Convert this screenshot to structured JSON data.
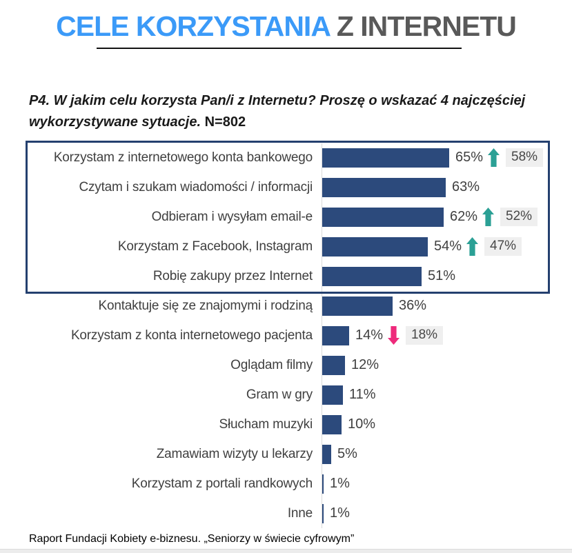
{
  "title": {
    "part1": "CELE KORZYSTANIA",
    "part2": "Z INTERNETU"
  },
  "question": {
    "text": "P4. W jakim celu korzysta Pan/i z Internetu? Proszę o wskazać 4 najczęściej wykorzystywane sytuacje.",
    "n_label": "N=802"
  },
  "chart_data": {
    "type": "bar",
    "orientation": "horizontal",
    "unit": "%",
    "xlim": [
      0,
      70
    ],
    "grid": false,
    "highlighted_top_n": 5,
    "categories": [
      "Korzystam z internetowego konta bankowego",
      "Czytam i szukam wiadomości / informacji",
      "Odbieram i wysyłam email-e",
      "Korzystam z Facebook, Instagram",
      "Robię zakupy przez Internet",
      "Kontaktuje się ze znajomymi i rodziną",
      "Korzystam z konta internetowego pacjenta",
      "Oglądam filmy",
      "Gram w gry",
      "Słucham muzyki",
      "Zamawiam wizyty u lekarzy",
      "Korzystam z portali randkowych",
      "Inne"
    ],
    "values": [
      65,
      63,
      62,
      54,
      51,
      36,
      14,
      12,
      11,
      10,
      5,
      1,
      1
    ],
    "rows": [
      {
        "label": "Korzystam z internetowego konta bankowego",
        "value": 65,
        "trend": "up",
        "previous": 58
      },
      {
        "label": "Czytam i szukam wiadomości / informacji",
        "value": 63,
        "trend": null,
        "previous": null
      },
      {
        "label": "Odbieram i wysyłam email-e",
        "value": 62,
        "trend": "up",
        "previous": 52
      },
      {
        "label": "Korzystam z Facebook, Instagram",
        "value": 54,
        "trend": "up",
        "previous": 47
      },
      {
        "label": "Robię zakupy przez Internet",
        "value": 51,
        "trend": null,
        "previous": null
      },
      {
        "label": "Kontaktuje się ze znajomymi i rodziną",
        "value": 36,
        "trend": null,
        "previous": null
      },
      {
        "label": "Korzystam z konta internetowego pacjenta",
        "value": 14,
        "trend": "down",
        "previous": 18
      },
      {
        "label": "Oglądam filmy",
        "value": 12,
        "trend": null,
        "previous": null
      },
      {
        "label": "Gram w gry",
        "value": 11,
        "trend": null,
        "previous": null
      },
      {
        "label": "Słucham muzyki",
        "value": 10,
        "trend": null,
        "previous": null
      },
      {
        "label": "Zamawiam wizyty u lekarzy",
        "value": 5,
        "trend": null,
        "previous": null
      },
      {
        "label": "Korzystam z portali randkowych",
        "value": 1,
        "trend": null,
        "previous": null
      },
      {
        "label": "Inne",
        "value": 1,
        "trend": null,
        "previous": null
      }
    ]
  },
  "footer": {
    "source": "Raport Fundacji Kobiety e-biznesu. „Seniorzy w świecie cyfrowym”"
  },
  "colors": {
    "bar": "#2C4A7C",
    "box_border": "#24406F",
    "title_accent": "#3B9AF8",
    "title_secondary": "#595959",
    "trend_up": "#2BA095",
    "trend_down": "#EE2A7B",
    "prev_value_bg": "#EFEFEF"
  }
}
